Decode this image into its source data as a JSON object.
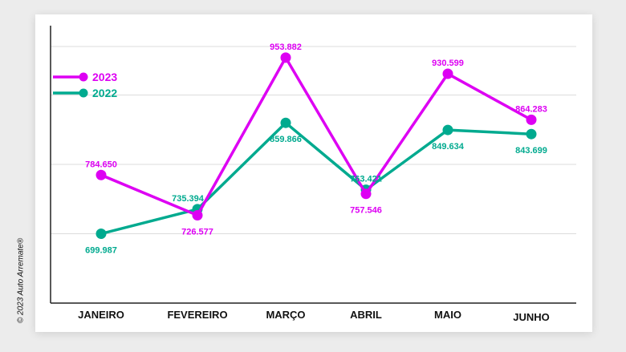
{
  "copyright": "© 2023 Auto Arremate®",
  "chart_data": {
    "type": "line",
    "categories": [
      "JANEIRO",
      "FEVEREIRO",
      "MARÇO",
      "ABRIL",
      "MAIO",
      "JUNHO"
    ],
    "series": [
      {
        "name": "2023",
        "color": "#dd00f3",
        "values": [
          784650,
          726577,
          953882,
          757546,
          930599,
          864283
        ],
        "labels": [
          "784.650",
          "726.577",
          "953.882",
          "757.546",
          "930.599",
          "864.283"
        ]
      },
      {
        "name": "2022",
        "color": "#00aa8f",
        "values": [
          699987,
          735394,
          859866,
          763421,
          849634,
          843699
        ],
        "labels": [
          "699.987",
          "735.394",
          "859.866",
          "763.421",
          "849.634",
          "843.699"
        ]
      }
    ],
    "grid": true,
    "legend": "top-left"
  }
}
